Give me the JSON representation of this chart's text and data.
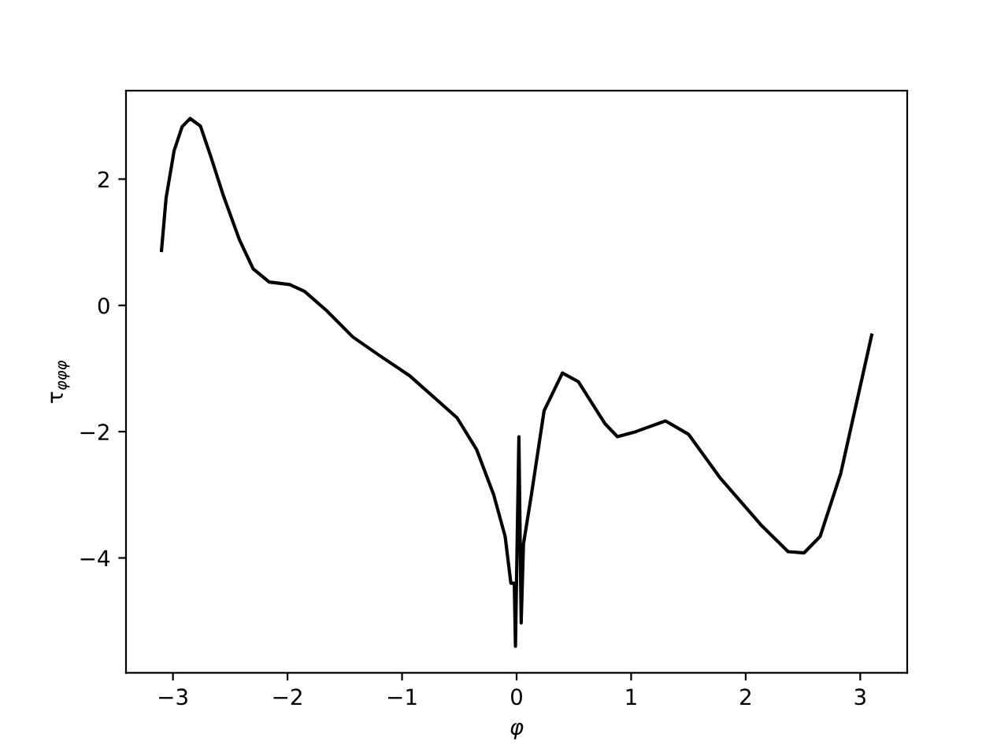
{
  "chart_data": {
    "type": "line",
    "xlabel": "φ",
    "ylabel": "τ$_{φφφ}$",
    "x": [
      -3.1,
      -3.06,
      -2.99,
      -2.92,
      -2.85,
      -2.76,
      -2.67,
      -2.56,
      -2.42,
      -2.3,
      -2.16,
      -1.98,
      -1.85,
      -1.66,
      -1.43,
      -1.2,
      -0.93,
      -0.7,
      -0.52,
      -0.35,
      -0.2,
      -0.1,
      -0.05,
      -0.02,
      -0.01,
      0.02,
      0.04,
      0.06,
      0.13,
      0.24,
      0.4,
      0.54,
      0.77,
      0.88,
      1.04,
      1.3,
      1.5,
      1.78,
      2.14,
      2.37,
      2.51,
      2.65,
      2.83,
      3.1
    ],
    "series": [
      {
        "color": "#000000",
        "values": [
          0.87,
          1.7,
          2.45,
          2.83,
          2.96,
          2.84,
          2.36,
          1.74,
          1.04,
          0.58,
          0.37,
          0.33,
          0.22,
          -0.08,
          -0.5,
          -0.79,
          -1.12,
          -1.49,
          -1.78,
          -2.28,
          -3.0,
          -3.66,
          -4.4,
          -4.4,
          -5.4,
          -2.08,
          -5.03,
          -3.78,
          -2.99,
          -1.67,
          -1.07,
          -1.21,
          -1.87,
          -2.08,
          -2.0,
          -1.83,
          -2.04,
          -2.74,
          -3.49,
          -3.9,
          -3.92,
          -3.66,
          -2.66,
          -0.47
        ]
      }
    ],
    "xlim": [
      -3.41,
      3.41
    ],
    "ylim": [
      -5.82,
      3.4
    ],
    "xticks": [
      -3,
      -2,
      -1,
      0,
      1,
      2,
      3
    ],
    "yticks": [
      -4,
      -2,
      0,
      2
    ],
    "grid": false,
    "legend": false,
    "marker": "none",
    "line_style": "solid"
  }
}
